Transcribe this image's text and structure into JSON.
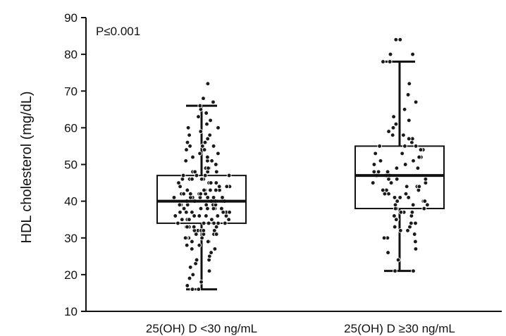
{
  "chart_data": {
    "type": "box",
    "ylabel": "HDL cholesterol (mg/dL)",
    "ylim": [
      10,
      90
    ],
    "yticks": [
      10,
      20,
      30,
      40,
      50,
      60,
      70,
      80,
      90
    ],
    "annotation": "P≤0.001",
    "categories": [
      "25(OH) D <30 ng/mL",
      "25(OH) D ≥30 ng/mL"
    ],
    "groups": [
      {
        "category": "25(OH) D <30 ng/mL",
        "whisker_low": 16,
        "q1": 34,
        "median": 40,
        "q3": 47,
        "whisker_high": 66,
        "points": [
          16,
          16,
          16,
          17,
          18,
          19,
          20,
          21,
          22,
          23,
          24,
          24,
          25,
          26,
          27,
          27,
          28,
          28,
          29,
          29,
          29,
          30,
          30,
          30,
          30,
          31,
          31,
          31,
          31,
          32,
          32,
          32,
          32,
          32,
          33,
          33,
          33,
          33,
          33,
          34,
          34,
          34,
          34,
          34,
          34,
          35,
          35,
          35,
          35,
          35,
          35,
          36,
          36,
          36,
          36,
          36,
          36,
          37,
          37,
          37,
          37,
          37,
          37,
          37,
          38,
          38,
          38,
          38,
          38,
          38,
          38,
          39,
          39,
          39,
          39,
          39,
          39,
          39,
          40,
          40,
          40,
          40,
          40,
          40,
          40,
          40,
          41,
          41,
          41,
          41,
          41,
          41,
          41,
          42,
          42,
          42,
          42,
          42,
          42,
          43,
          43,
          43,
          43,
          43,
          43,
          44,
          44,
          44,
          44,
          44,
          45,
          45,
          45,
          45,
          45,
          46,
          46,
          46,
          46,
          46,
          47,
          47,
          47,
          47,
          48,
          48,
          48,
          48,
          49,
          49,
          49,
          50,
          50,
          50,
          51,
          51,
          51,
          52,
          52,
          53,
          53,
          54,
          54,
          55,
          55,
          55,
          56,
          56,
          57,
          58,
          58,
          59,
          60,
          60,
          61,
          62,
          63,
          64,
          65,
          66,
          67,
          68,
          72,
          72
        ]
      },
      {
        "category": "25(OH) D ≥30 ng/mL",
        "whisker_low": 21,
        "q1": 38,
        "median": 47,
        "q3": 55,
        "whisker_high": 78,
        "points": [
          21,
          21,
          24,
          26,
          27,
          29,
          30,
          30,
          31,
          32,
          32,
          33,
          33,
          34,
          34,
          35,
          35,
          36,
          36,
          37,
          37,
          37,
          38,
          38,
          38,
          39,
          39,
          39,
          40,
          40,
          40,
          41,
          41,
          41,
          42,
          42,
          42,
          43,
          43,
          43,
          44,
          44,
          44,
          45,
          45,
          45,
          46,
          46,
          46,
          47,
          47,
          47,
          48,
          48,
          48,
          49,
          49,
          50,
          50,
          51,
          51,
          52,
          52,
          53,
          53,
          54,
          54,
          55,
          55,
          55,
          56,
          57,
          57,
          58,
          58,
          59,
          60,
          61,
          62,
          63,
          65,
          67,
          69,
          72,
          78,
          78,
          80,
          80,
          84,
          84
        ]
      }
    ]
  }
}
